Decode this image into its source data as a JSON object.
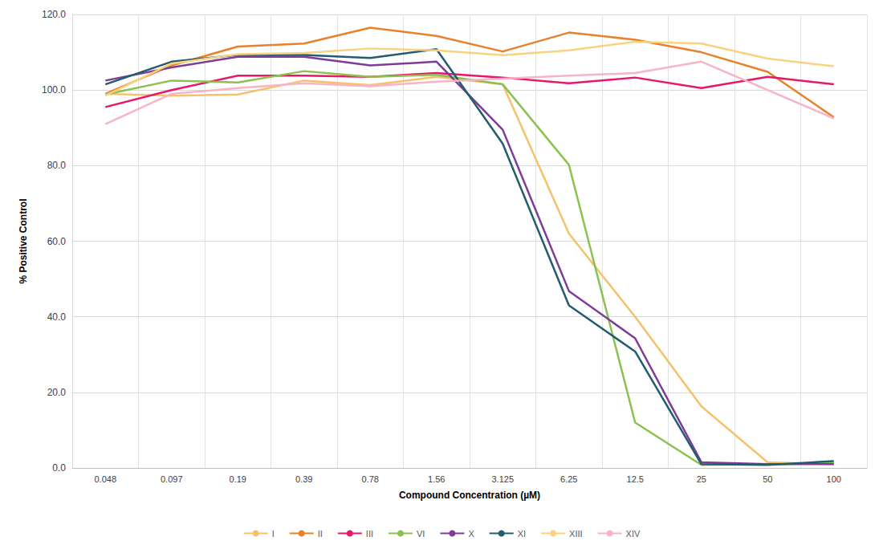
{
  "chart_data": {
    "type": "line",
    "x_label": "Compound Concentration (µM)",
    "y_label": "% Positive Control",
    "categories": [
      "0.048",
      "0.097",
      "0.19",
      "0.39",
      "0.78",
      "1.56",
      "3.125",
      "6.25",
      "12.5",
      "25",
      "50",
      "100"
    ],
    "ylim": [
      0,
      120
    ],
    "yticks": [
      {
        "value": 0,
        "label": "0.0"
      },
      {
        "value": 20,
        "label": "20.0"
      },
      {
        "value": 40,
        "label": "40.0"
      },
      {
        "value": 60,
        "label": "60.0"
      },
      {
        "value": 80,
        "label": "80.0"
      },
      {
        "value": 100,
        "label": "100.0"
      },
      {
        "value": 120,
        "label": "120.0"
      }
    ],
    "grid": true,
    "legend": "bottom",
    "series": [
      {
        "name": "I",
        "color": "#f5c26b",
        "values": [
          99,
          98.5,
          98.8,
          102.5,
          101.3,
          103.5,
          101.5,
          62,
          40,
          16.3,
          1.5,
          1
        ]
      },
      {
        "name": "II",
        "color": "#e8822a",
        "values": [
          99,
          106.5,
          111.5,
          112.3,
          116.5,
          114.3,
          110.2,
          115.2,
          113.3,
          110,
          104.8,
          92.8
        ]
      },
      {
        "name": "III",
        "color": "#e8176a",
        "values": [
          95.5,
          100,
          103.8,
          103.8,
          103.5,
          104.5,
          103.3,
          101.8,
          103.3,
          100.5,
          103.5,
          101.5
        ]
      },
      {
        "name": "VI",
        "color": "#8cc152",
        "values": [
          98.8,
          102.5,
          102,
          105,
          103.5,
          104,
          101.5,
          80.2,
          12,
          0.8,
          1,
          1.2
        ]
      },
      {
        "name": "X",
        "color": "#7d3c98",
        "values": [
          102.5,
          106,
          108.8,
          108.8,
          106.5,
          107.5,
          89.5,
          46.8,
          34.3,
          1.5,
          1,
          1
        ]
      },
      {
        "name": "XI",
        "color": "#235c6e",
        "values": [
          101.5,
          107.5,
          109.3,
          109.3,
          108.5,
          110.8,
          85.8,
          43,
          30.8,
          1,
          0.8,
          1.8
        ]
      },
      {
        "name": "XIII",
        "color": "#fad27f",
        "values": [
          98.5,
          107,
          109.5,
          109.8,
          111,
          110.5,
          109.2,
          110.5,
          112.8,
          112.3,
          108.3,
          106.3
        ]
      },
      {
        "name": "XIV",
        "color": "#f7b3c7",
        "values": [
          91,
          99,
          100.5,
          101.8,
          101,
          102.2,
          103,
          103.8,
          104.5,
          107.5,
          100,
          92.5
        ]
      }
    ]
  }
}
